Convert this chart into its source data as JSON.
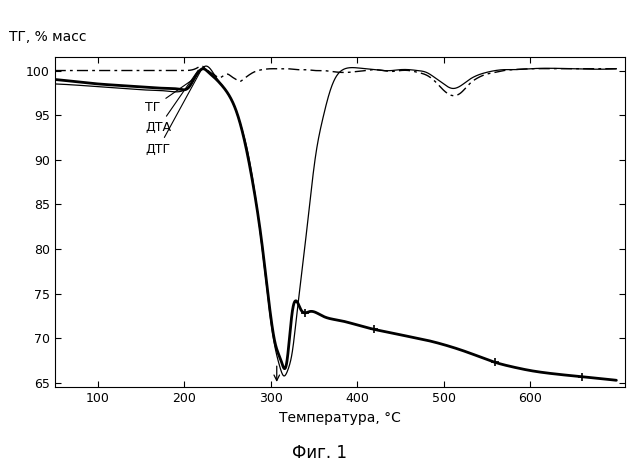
{
  "title_ylabel": "ТГ, % масс",
  "xlabel": "Температура, °C",
  "caption": "Фиг. 1",
  "xlim": [
    50,
    710
  ],
  "ylim": [
    64.5,
    101.5
  ],
  "yticks": [
    65,
    70,
    75,
    80,
    85,
    90,
    95,
    100
  ],
  "xticks": [
    100,
    200,
    300,
    400,
    500,
    600
  ],
  "background_color": "#ffffff"
}
